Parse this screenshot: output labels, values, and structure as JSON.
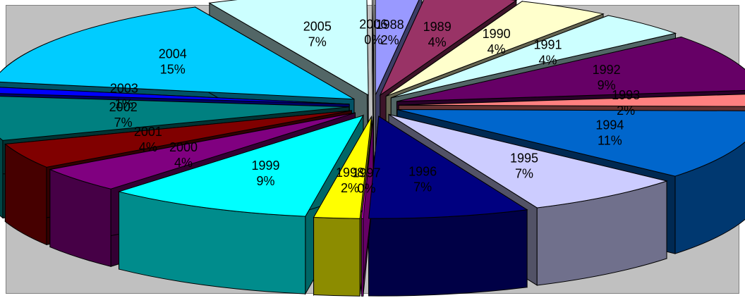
{
  "chart_data": {
    "type": "pie",
    "style": "3d-exploded",
    "legend": "none",
    "slices": [
      {
        "label": "1988",
        "value": 2,
        "value_label": "2%",
        "color": "#9999ff"
      },
      {
        "label": "1989",
        "value": 4,
        "value_label": "4%",
        "color": "#993366"
      },
      {
        "label": "1990",
        "value": 4,
        "value_label": "4%",
        "color": "#ffffcc"
      },
      {
        "label": "1991",
        "value": 4,
        "value_label": "4%",
        "color": "#ccffff"
      },
      {
        "label": "1992",
        "value": 9,
        "value_label": "9%",
        "color": "#660066"
      },
      {
        "label": "1993",
        "value": 2,
        "value_label": "2%",
        "color": "#ff8080"
      },
      {
        "label": "1994",
        "value": 11,
        "value_label": "11%",
        "color": "#0066cc"
      },
      {
        "label": "1995",
        "value": 7,
        "value_label": "7%",
        "color": "#ccccff"
      },
      {
        "label": "1996",
        "value": 7,
        "value_label": "7%",
        "color": "#000080"
      },
      {
        "label": "1997",
        "value": 0,
        "value_label": "0%",
        "color": "#ff00ff"
      },
      {
        "label": "1998",
        "value": 2,
        "value_label": "2%",
        "color": "#ffff00"
      },
      {
        "label": "1999",
        "value": 9,
        "value_label": "9%",
        "color": "#00ffff"
      },
      {
        "label": "2000",
        "value": 4,
        "value_label": "4%",
        "color": "#800080"
      },
      {
        "label": "2001",
        "value": 4,
        "value_label": "4%",
        "color": "#800000"
      },
      {
        "label": "2002",
        "value": 7,
        "value_label": "7%",
        "color": "#008080"
      },
      {
        "label": "2003",
        "value": 1,
        "value_label": "1%",
        "color": "#0000ff"
      },
      {
        "label": "2004",
        "value": 15,
        "value_label": "15%",
        "color": "#00ccff"
      },
      {
        "label": "2005",
        "value": 7,
        "value_label": "7%",
        "color": "#ccffff"
      },
      {
        "label": "2006",
        "value": 0,
        "value_label": "0%",
        "color": "#ffffff"
      }
    ]
  }
}
